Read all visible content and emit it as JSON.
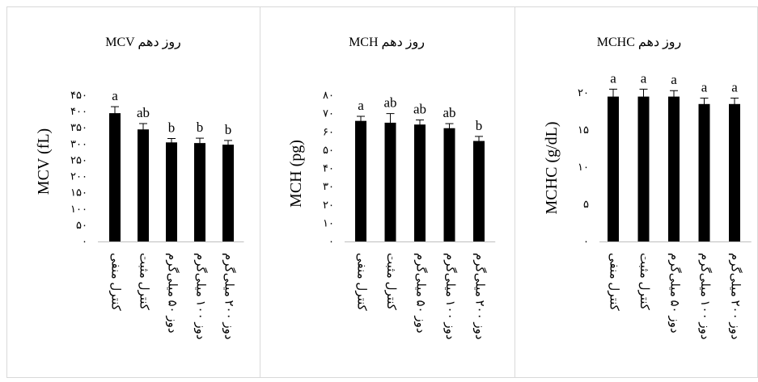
{
  "chart_data": [
    {
      "type": "bar",
      "title": "MCV روز دهم",
      "ylabel": "MCV (fL)",
      "xlabel": "",
      "ylim": [
        0,
        450
      ],
      "yticks": [
        "۰",
        "۵۰",
        "۱۰۰",
        "۱۵۰",
        "۲۰۰",
        "۲۵۰",
        "۳۰۰",
        "۳۵۰",
        "۴۰۰",
        "۴۵۰"
      ],
      "categories": [
        "کنترل منفی",
        "کنترل مثبت",
        "دوز ۵۰ میلی‌گرم",
        "دوز ۱۰۰ میلی‌گرم",
        "دوز ۲۰۰ میلی‌گرم"
      ],
      "values": [
        395,
        345,
        305,
        303,
        298
      ],
      "errors": [
        20,
        18,
        12,
        15,
        13
      ],
      "letters": [
        "a",
        "ab",
        "b",
        "b",
        "b"
      ],
      "grid": false,
      "bar_color": "#000000"
    },
    {
      "type": "bar",
      "title": "MCH روز دهم",
      "ylabel": "MCH (pg)",
      "xlabel": "",
      "ylim": [
        0,
        80
      ],
      "yticks": [
        "۰",
        "۱۰",
        "۲۰",
        "۳۰",
        "۴۰",
        "۵۰",
        "۶۰",
        "۷۰",
        "۸۰"
      ],
      "categories": [
        "کنترل منفی",
        "کنترل مثبت",
        "دوز ۵۰ میلی‌گرم",
        "دوز ۱۰۰ میلی‌گرم",
        "دوز ۲۰۰ میلی‌گرم"
      ],
      "values": [
        66,
        65,
        64,
        62,
        55
      ],
      "errors": [
        2.5,
        5,
        2.5,
        2.5,
        2.5
      ],
      "letters": [
        "a",
        "ab",
        "ab",
        "ab",
        "b"
      ],
      "grid": false,
      "bar_color": "#000000"
    },
    {
      "type": "bar",
      "title": "MCHC روز دهم",
      "ylabel": "MCHC (g/dL)",
      "xlabel": "",
      "ylim": [
        0,
        20
      ],
      "yticks": [
        "۰",
        "۵",
        "۱۰",
        "۱۵",
        "۲۰"
      ],
      "categories": [
        "کنترل منفی",
        "کنترل مثبت",
        "دوز ۵۰ میلی‌گرم",
        "دوز ۱۰۰ میلی‌گرم",
        "دوز ۲۰۰ میلی‌گرم"
      ],
      "values": [
        19.5,
        19.5,
        19.5,
        18.5,
        18.5
      ],
      "errors": [
        1,
        1,
        0.8,
        0.8,
        0.8
      ],
      "letters": [
        "a",
        "a",
        "a",
        "a",
        "a"
      ],
      "grid": false,
      "bar_color": "#000000"
    }
  ]
}
